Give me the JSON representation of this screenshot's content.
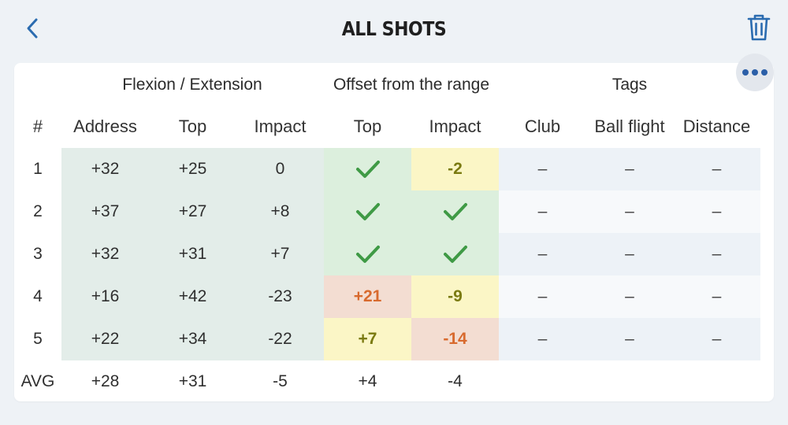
{
  "header": {
    "title": "ALL SHOTS",
    "back_icon": "chevron-left-icon",
    "trash_icon": "trash-icon"
  },
  "menu": {
    "icon": "more-dots-icon"
  },
  "groups": {
    "flexion": "Flexion / Extension",
    "offset": "Offset from the range",
    "tags": "Tags"
  },
  "columns": {
    "num": "#",
    "address": "Address",
    "top": "Top",
    "impact": "Impact",
    "off_top": "Top",
    "off_impact": "Impact",
    "club": "Club",
    "ball_flight": "Ball flight",
    "distance": "Distance"
  },
  "colors": {
    "accent": "#2b6cb0",
    "check": "#3f9a45",
    "green_fill": "#dcefdd",
    "yellow_fill": "#fbf6c6",
    "red_fill": "#f3ddd2",
    "flexion_fill": "#e3ede9",
    "tags_fill": "#edf2f7",
    "text_ok": "#7a7a10",
    "text_bad": "#d86a2e"
  },
  "rows": [
    {
      "num": "1",
      "address": "+32",
      "top": "+25",
      "impact": "0",
      "off_top": {
        "check": true,
        "text": "",
        "status": "good"
      },
      "off_impact": {
        "check": false,
        "text": "-2",
        "status": "warn"
      },
      "club": "–",
      "ball_flight": "–",
      "distance": "–"
    },
    {
      "num": "2",
      "address": "+37",
      "top": "+27",
      "impact": "+8",
      "off_top": {
        "check": true,
        "text": "",
        "status": "good"
      },
      "off_impact": {
        "check": true,
        "text": "",
        "status": "good"
      },
      "club": "–",
      "ball_flight": "–",
      "distance": "–"
    },
    {
      "num": "3",
      "address": "+32",
      "top": "+31",
      "impact": "+7",
      "off_top": {
        "check": true,
        "text": "",
        "status": "good"
      },
      "off_impact": {
        "check": true,
        "text": "",
        "status": "good"
      },
      "club": "–",
      "ball_flight": "–",
      "distance": "–"
    },
    {
      "num": "4",
      "address": "+16",
      "top": "+42",
      "impact": "-23",
      "off_top": {
        "check": false,
        "text": "+21",
        "status": "bad"
      },
      "off_impact": {
        "check": false,
        "text": "-9",
        "status": "warn"
      },
      "club": "–",
      "ball_flight": "–",
      "distance": "–"
    },
    {
      "num": "5",
      "address": "+22",
      "top": "+34",
      "impact": "-22",
      "off_top": {
        "check": false,
        "text": "+7",
        "status": "warn"
      },
      "off_impact": {
        "check": false,
        "text": "-14",
        "status": "bad"
      },
      "club": "–",
      "ball_flight": "–",
      "distance": "–"
    }
  ],
  "avg": {
    "label": "AVG",
    "address": "+28",
    "top": "+31",
    "impact": "-5",
    "off_top": "+4",
    "off_impact": "-4"
  }
}
